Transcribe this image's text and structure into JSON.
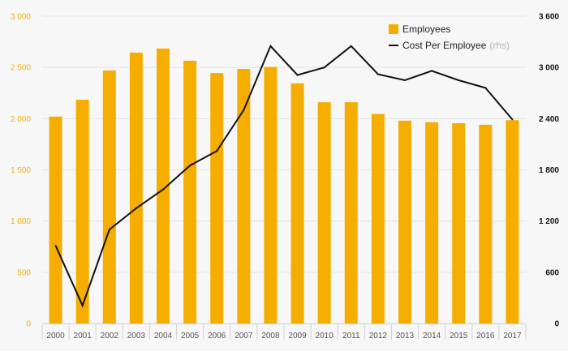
{
  "chart_data": {
    "type": "bar",
    "categories": [
      "2000",
      "2001",
      "2002",
      "2003",
      "2004",
      "2005",
      "2006",
      "2007",
      "2008",
      "2009",
      "2010",
      "2011",
      "2012",
      "2013",
      "2014",
      "2015",
      "2016",
      "2017"
    ],
    "series": [
      {
        "name": "Employees",
        "type": "bar",
        "axis": "left",
        "color": "#f5ad00",
        "values": [
          2020,
          2185,
          2470,
          2645,
          2685,
          2565,
          2445,
          2485,
          2505,
          2345,
          2160,
          2160,
          2045,
          1980,
          1965,
          1955,
          1940,
          1985
        ]
      },
      {
        "name": "Cost Per Employee",
        "name_suffix": "(rhs)",
        "type": "line",
        "axis": "right",
        "color": "#111111",
        "values": [
          910,
          210,
          1100,
          1350,
          1570,
          1850,
          2020,
          2500,
          3250,
          2910,
          3000,
          3250,
          2920,
          2850,
          2960,
          2850,
          2760,
          2390
        ]
      }
    ],
    "left_axis": {
      "ylim": [
        0,
        3000
      ],
      "ticks": [
        0,
        500,
        1000,
        1500,
        2000,
        2500,
        3000
      ],
      "tick_labels": [
        "0",
        "500",
        "1 000",
        "1 500",
        "2 000",
        "2 500",
        "3 000"
      ],
      "color": "#f5ad00"
    },
    "right_axis": {
      "ylim": [
        0,
        3600
      ],
      "ticks": [
        0,
        600,
        1200,
        1800,
        2400,
        3000,
        3600
      ],
      "tick_labels": [
        "0",
        "600",
        "1 200",
        "1 800",
        "2 400",
        "3 000",
        "3 600"
      ],
      "color": "#111111"
    },
    "grid": true,
    "legend_position": "top-right",
    "title": "",
    "xlabel": "",
    "ylabel": ""
  }
}
